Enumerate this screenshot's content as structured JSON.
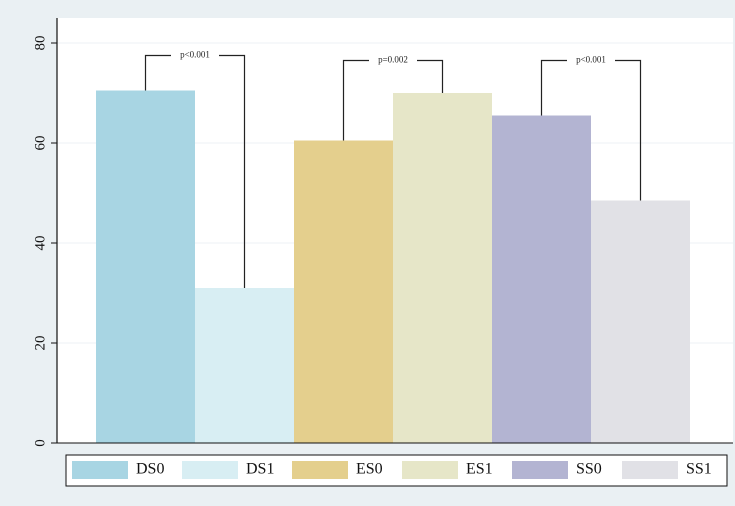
{
  "chart_data": {
    "type": "bar",
    "categories": [
      "DS0",
      "DS1",
      "ES0",
      "ES1",
      "SS0",
      "SS1"
    ],
    "values": [
      70.5,
      31,
      60.5,
      70,
      65.5,
      48.5
    ],
    "colors": [
      "#a8d5e3",
      "#d8eef3",
      "#e4cf8d",
      "#e6e6c8",
      "#b3b4d2",
      "#e1e1e6"
    ],
    "ylim": [
      0,
      85
    ],
    "yticks": [
      0,
      20,
      40,
      60,
      80
    ],
    "grid": true,
    "legend_position": "bottom",
    "legend": [
      "DS0",
      "DS1",
      "ES0",
      "ES1",
      "SS0",
      "SS1"
    ],
    "annotations": [
      {
        "pair": [
          0,
          1
        ],
        "text": "p<0.001",
        "bracket_y": 77.5
      },
      {
        "pair": [
          2,
          3
        ],
        "text": "p=0.002",
        "bracket_y": 76.5
      },
      {
        "pair": [
          4,
          5
        ],
        "text": "p<0.001",
        "bracket_y": 76.5
      }
    ]
  }
}
